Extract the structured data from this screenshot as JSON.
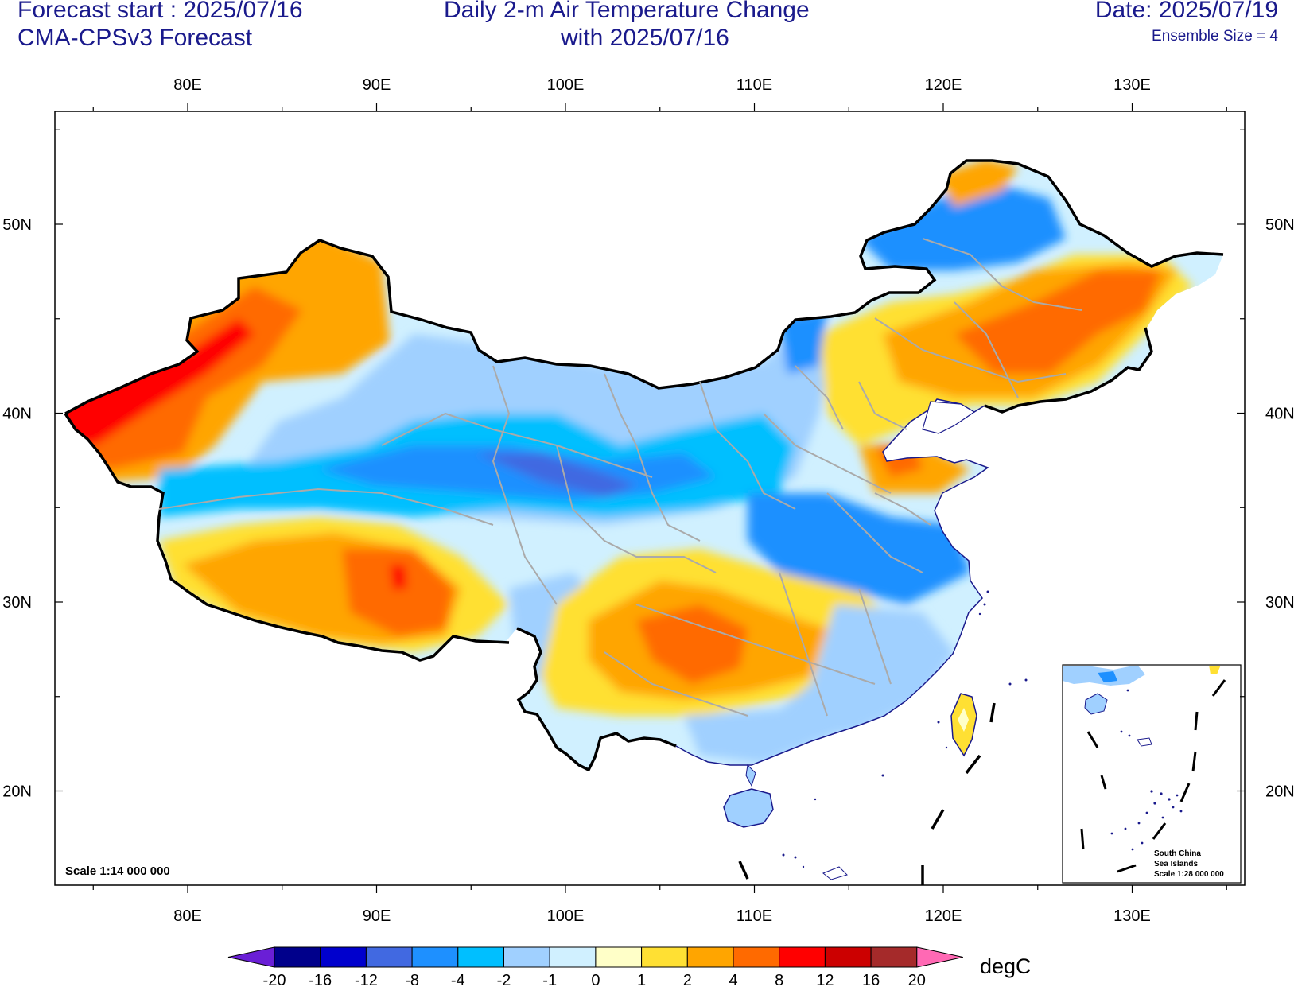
{
  "header": {
    "forecast_start": "Forecast start : 2025/07/16",
    "model": "CMA-CPSv3 Forecast",
    "title_line1": "Daily 2-m Air Temperature Change",
    "title_line2": "with 2025/07/16",
    "date": "Date: 2025/07/19",
    "ensemble": "Ensemble Size = 4"
  },
  "axes": {
    "lon_labels": [
      "80E",
      "90E",
      "100E",
      "110E",
      "120E",
      "130E"
    ],
    "lat_labels": [
      "50N",
      "40N",
      "30N",
      "20N"
    ]
  },
  "map": {
    "scale_label": "Scale 1:14 000 000",
    "inset": {
      "line1": "South China",
      "line2": "Sea Islands",
      "line3": "Scale 1:28 000 000"
    }
  },
  "colorbar": {
    "unit": "degC",
    "ticks": [
      "-20",
      "-16",
      "-12",
      "-8",
      "-4",
      "-2",
      "-1",
      "0",
      "1",
      "2",
      "4",
      "8",
      "12",
      "16",
      "20"
    ],
    "colors": [
      "#6a1fd6",
      "#00008b",
      "#0000cd",
      "#4169e1",
      "#1e90ff",
      "#00bfff",
      "#a0d0ff",
      "#d0f0ff",
      "#ffffc8",
      "#ffe033",
      "#ffa500",
      "#ff6a00",
      "#ff0000",
      "#cc0000",
      "#a52a2a",
      "#ff69b4"
    ]
  }
}
